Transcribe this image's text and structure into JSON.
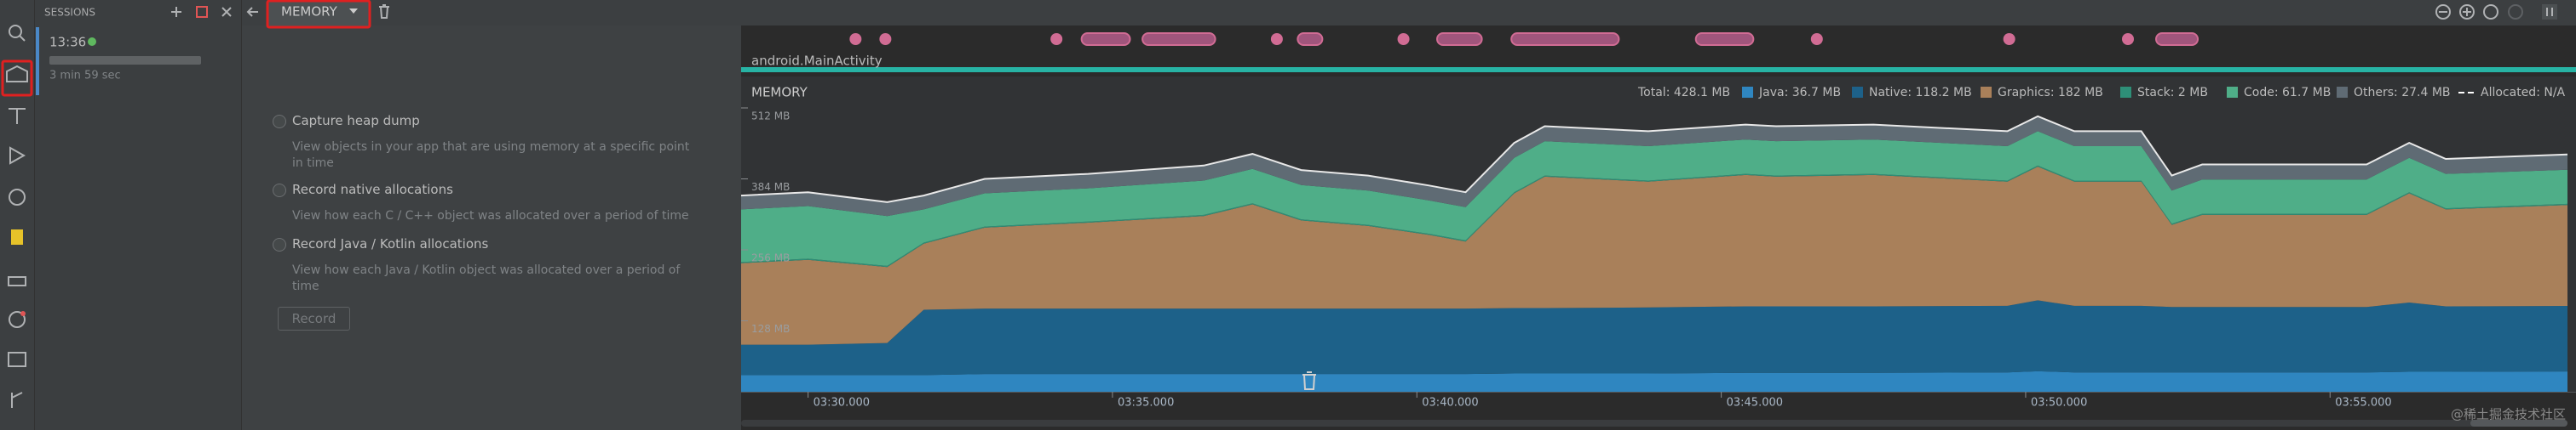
{
  "sessions": {
    "title": "SESSIONS",
    "time": "13:36",
    "duration": "3 min 59 sec"
  },
  "toolbar": {
    "profiler": "MEMORY"
  },
  "options": [
    {
      "label": "Capture heap dump",
      "description": "View objects in your app that are using memory at a specific point in time"
    },
    {
      "label": "Record native allocations",
      "description": "View how each C / C++ object was allocated over a period of time"
    },
    {
      "label": "Record Java / Kotlin allocations",
      "description": "View how each Java / Kotlin object was allocated over a period of time"
    }
  ],
  "record_button": "Record",
  "watermark": "@稀土掘金技术社区",
  "chart_data": {
    "type": "area",
    "title": "MEMORY",
    "activity": "android.MainActivity",
    "total_label": "Total: 428.1 MB",
    "allocated_label": "Allocated: N/A",
    "x": [
      208.9,
      210,
      211.3,
      211.9,
      212.9,
      214.6,
      216.5,
      217.3,
      218.1,
      219.2,
      220.2,
      220.8,
      221.6,
      222.1,
      223.8,
      225.4,
      225.9,
      227.5,
      229.7,
      230.2,
      230.8,
      231.9,
      232.4,
      232.9,
      235.6,
      236.3,
      236.9,
      238.9
    ],
    "xlim": [
      208.9,
      238.9
    ],
    "xticks": [
      {
        "value": 210,
        "label": "03:30.000"
      },
      {
        "value": 215,
        "label": "03:35.000"
      },
      {
        "value": 220,
        "label": "03:40.000"
      },
      {
        "value": 225,
        "label": "03:45.000"
      },
      {
        "value": 230,
        "label": "03:50.000"
      },
      {
        "value": 235,
        "label": "03:55.000"
      }
    ],
    "ylim": [
      0,
      512
    ],
    "yticks": [
      {
        "value": 128,
        "label": "128 MB"
      },
      {
        "value": 256,
        "label": "256 MB"
      },
      {
        "value": 384,
        "label": "384 MB"
      },
      {
        "value": 512,
        "label": "512 MB"
      }
    ],
    "series": [
      {
        "name": "Java: 36.7 MB",
        "color": "#2f86c0",
        "values": [
          30,
          30,
          30,
          30,
          32,
          32,
          32,
          32,
          32,
          32,
          32,
          32,
          33,
          33,
          33,
          34,
          34,
          34,
          35,
          37,
          35,
          35,
          35,
          35,
          35,
          36,
          36,
          36.7
        ]
      },
      {
        "name": "Native: 118.2 MB",
        "color": "#1d6189",
        "values": [
          55,
          55,
          58,
          118,
          118,
          118,
          118,
          118,
          118,
          118,
          118,
          118,
          118,
          118,
          119,
          120,
          120,
          120,
          120,
          128,
          120,
          120,
          118,
          118,
          118,
          125,
          118,
          118.2
        ]
      },
      {
        "name": "Graphics: 182 MB",
        "color": "#a9805a",
        "values": [
          147,
          153,
          137,
          119,
          146,
          155,
          167,
          188,
          159,
          149,
          133,
          121,
          207,
          237,
          227,
          237,
          234,
          237,
          224,
          241,
          224,
          224,
          148,
          166,
          166,
          197,
          175,
          182
        ]
      },
      {
        "name": "Stack: 2 MB",
        "color": "#2e8f78",
        "values": [
          2,
          2,
          2,
          2,
          2,
          2,
          2,
          2,
          2,
          2,
          2,
          2,
          2,
          2,
          2,
          2,
          2,
          2,
          2,
          2,
          2,
          2,
          2,
          2,
          2,
          2,
          2,
          2
        ]
      },
      {
        "name": "Code: 61.7 MB",
        "color": "#4fae88",
        "values": [
          95,
          95,
          90,
          60,
          60,
          60,
          62,
          62,
          62,
          62,
          60,
          60,
          62,
          62,
          62,
          62,
          62,
          62,
          62,
          62,
          62,
          62,
          60,
          62,
          62,
          62,
          62,
          61.7
        ]
      },
      {
        "name": "Others: 27.4 MB",
        "color": "#5f6b74",
        "values": [
          25,
          25,
          25,
          25,
          26,
          26,
          27,
          27,
          27,
          27,
          27,
          27,
          27,
          27,
          27,
          27,
          27,
          27,
          27,
          27,
          27,
          27,
          27,
          27,
          27,
          27,
          27,
          27.4
        ]
      }
    ],
    "events": [
      {
        "start": 210.78,
        "end": 210.78
      },
      {
        "start": 211.27,
        "end": 211.27
      },
      {
        "start": 214.08,
        "end": 214.08
      },
      {
        "start": 214.59,
        "end": 215.19
      },
      {
        "start": 215.59,
        "end": 216.59
      },
      {
        "start": 217.7,
        "end": 217.7
      },
      {
        "start": 218.14,
        "end": 218.35
      },
      {
        "start": 219.78,
        "end": 219.78
      },
      {
        "start": 220.43,
        "end": 220.97
      },
      {
        "start": 221.65,
        "end": 223.22
      },
      {
        "start": 224.68,
        "end": 225.43
      },
      {
        "start": 226.57,
        "end": 226.57
      },
      {
        "start": 229.73,
        "end": 229.73
      },
      {
        "start": 231.68,
        "end": 231.68
      },
      {
        "start": 232.24,
        "end": 232.73
      }
    ]
  }
}
